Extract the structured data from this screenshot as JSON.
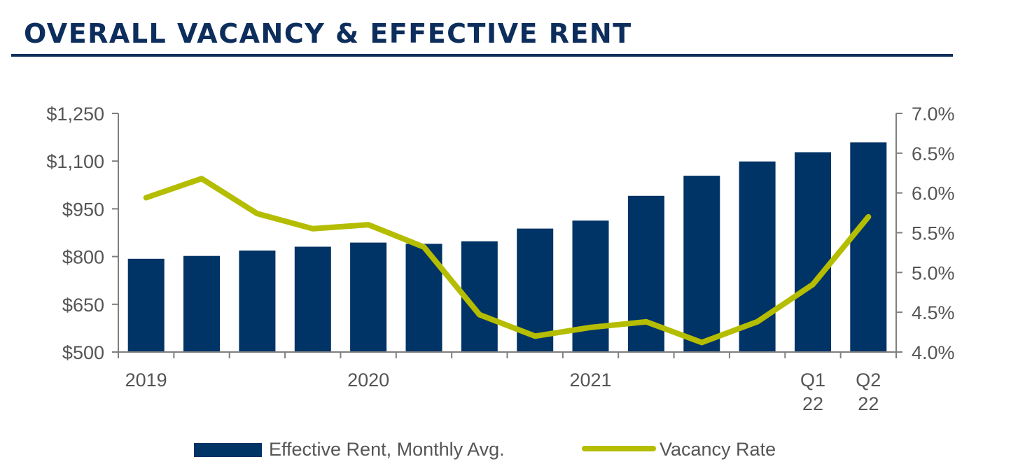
{
  "title": "OVERALL VACANCY & EFFECTIVE RENT",
  "colors": {
    "title": "#0d2e5c",
    "bar": "#003366",
    "line": "#b5bd00",
    "axis": "#7f7f7f",
    "text": "#555555"
  },
  "chart_data": {
    "type": "bar",
    "title": "OVERALL VACANCY & EFFECTIVE RENT",
    "x_labels": [
      [
        "2019"
      ],
      [
        ""
      ],
      [
        ""
      ],
      [
        ""
      ],
      [
        "2020"
      ],
      [
        ""
      ],
      [
        ""
      ],
      [
        ""
      ],
      [
        "2021"
      ],
      [
        ""
      ],
      [
        ""
      ],
      [
        ""
      ],
      [
        "Q1",
        "22"
      ],
      [
        "Q2",
        "22"
      ]
    ],
    "series": [
      {
        "name": "Effective Rent, Monthly Avg.",
        "type": "bar",
        "axis": "left",
        "values": [
          793,
          802,
          819,
          831,
          844,
          840,
          848,
          888,
          913,
          991,
          1054,
          1099,
          1128,
          1159
        ]
      },
      {
        "name": "Vacancy Rate",
        "type": "line",
        "axis": "right",
        "values": [
          5.94,
          6.18,
          5.74,
          5.55,
          5.6,
          5.32,
          4.47,
          4.2,
          4.31,
          4.38,
          4.12,
          4.38,
          4.85,
          5.7
        ]
      }
    ],
    "y_left": {
      "min": 500,
      "max": 1250,
      "ticks": [
        "$500",
        "$650",
        "$800",
        "$950",
        "$1,100",
        "$1,250"
      ]
    },
    "y_right": {
      "min": 4.0,
      "max": 7.0,
      "ticks": [
        "4.0%",
        "4.5%",
        "5.0%",
        "5.5%",
        "6.0%",
        "6.5%",
        "7.0%"
      ]
    },
    "grid": false,
    "legend": "bottom"
  },
  "legend": {
    "items": [
      {
        "label": "Effective Rent, Monthly Avg.",
        "shape": "bar"
      },
      {
        "label": "Vacancy Rate",
        "shape": "line"
      }
    ]
  }
}
